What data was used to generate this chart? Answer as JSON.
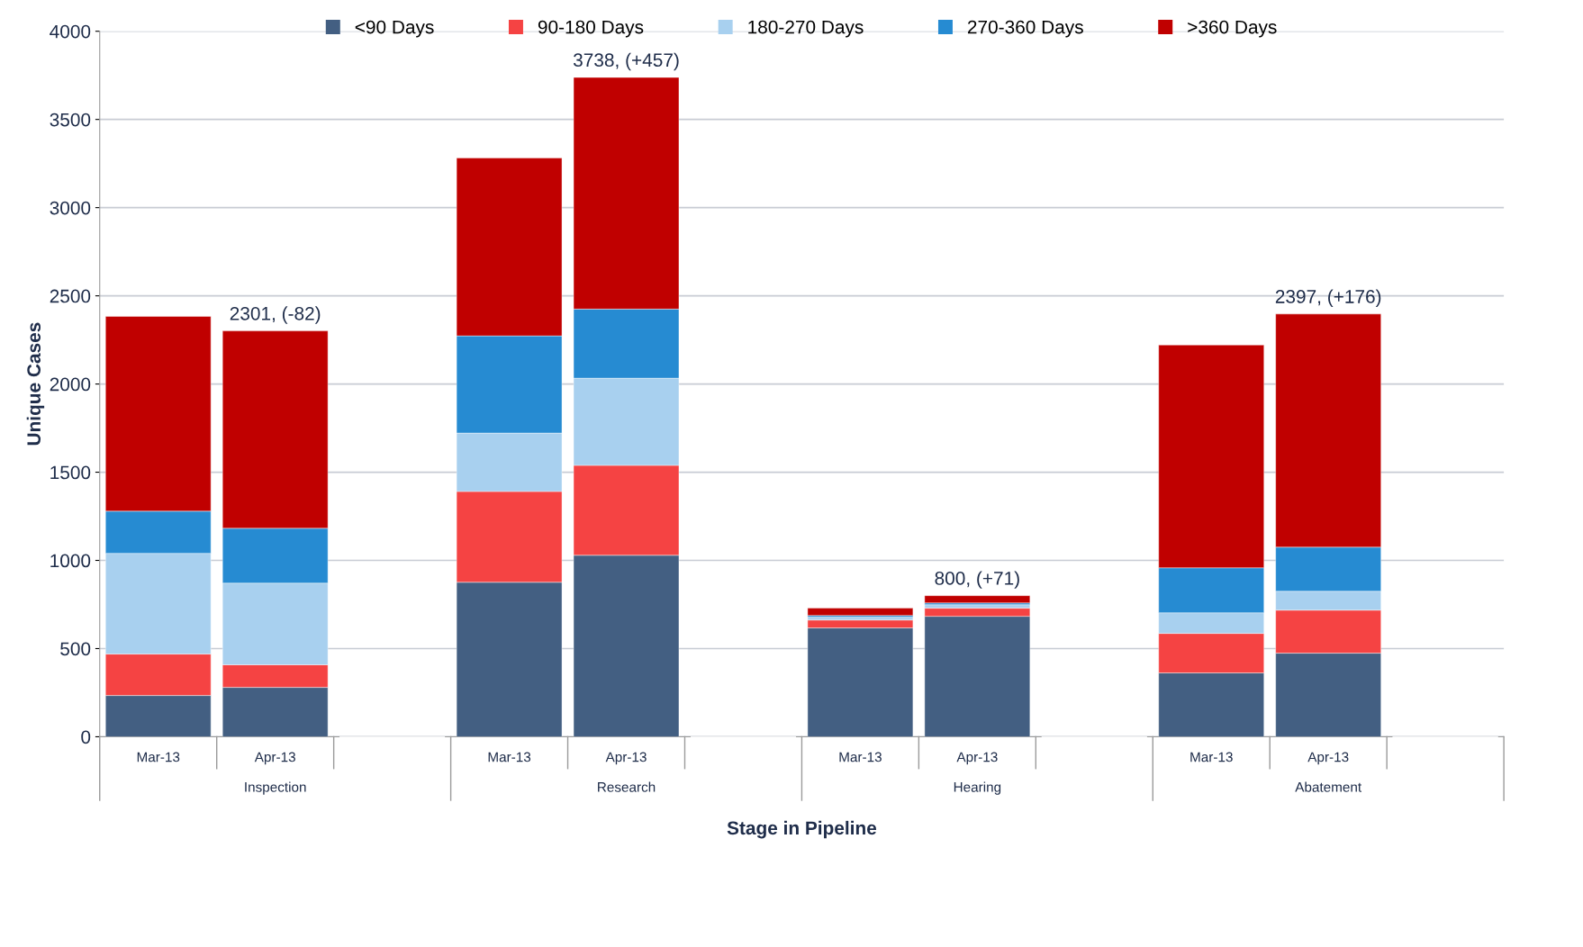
{
  "chart_data": {
    "type": "bar",
    "stacked": true,
    "xlabel": "Stage in Pipeline",
    "ylabel": "Unique Cases",
    "categories": [
      "Mar-13",
      "Apr-13",
      null,
      "Mar-13",
      "Apr-13",
      null,
      "Mar-13",
      "Apr-13",
      null,
      "Mar-13",
      "Apr-13",
      null
    ],
    "series": [
      {
        "name": "<90 Days",
        "color": "#435f82",
        "values": [
          234,
          280,
          null,
          876,
          1029,
          null,
          617,
          683,
          null,
          362,
          474,
          null
        ]
      },
      {
        "name": "90-180 Days",
        "color": "#f54343",
        "values": [
          235,
          128,
          null,
          515,
          510,
          null,
          45,
          46,
          null,
          224,
          244,
          null
        ]
      },
      {
        "name": "180-270 Days",
        "color": "#a8d0ef",
        "values": [
          571,
          463,
          null,
          331,
          494,
          null,
          16,
          20,
          null,
          117,
          107,
          null
        ]
      },
      {
        "name": "270-360 Days",
        "color": "#268bd2",
        "values": [
          239,
          311,
          null,
          551,
          392,
          null,
          10,
          10,
          null,
          255,
          250,
          null
        ]
      },
      {
        "name": ">360 Days",
        "color": "#c00000",
        "values": [
          1104,
          1119,
          null,
          1008,
          1313,
          null,
          41,
          41,
          null,
          1263,
          1322,
          null
        ]
      }
    ],
    "totals": [
      null,
      "2301, (-82)",
      null,
      null,
      "3738, (+457)",
      null,
      null,
      "800, (+71)",
      null,
      null,
      "2397, (+176)",
      null
    ],
    "annotations": [
      "Inspection",
      "Research",
      "Hearing",
      "Abatement"
    ],
    "ylim": [
      0,
      4000
    ],
    "yticks": [
      0,
      500,
      1000,
      1500,
      2000,
      2500,
      3000,
      3500,
      4000
    ],
    "grid": "y",
    "legend": "top"
  }
}
